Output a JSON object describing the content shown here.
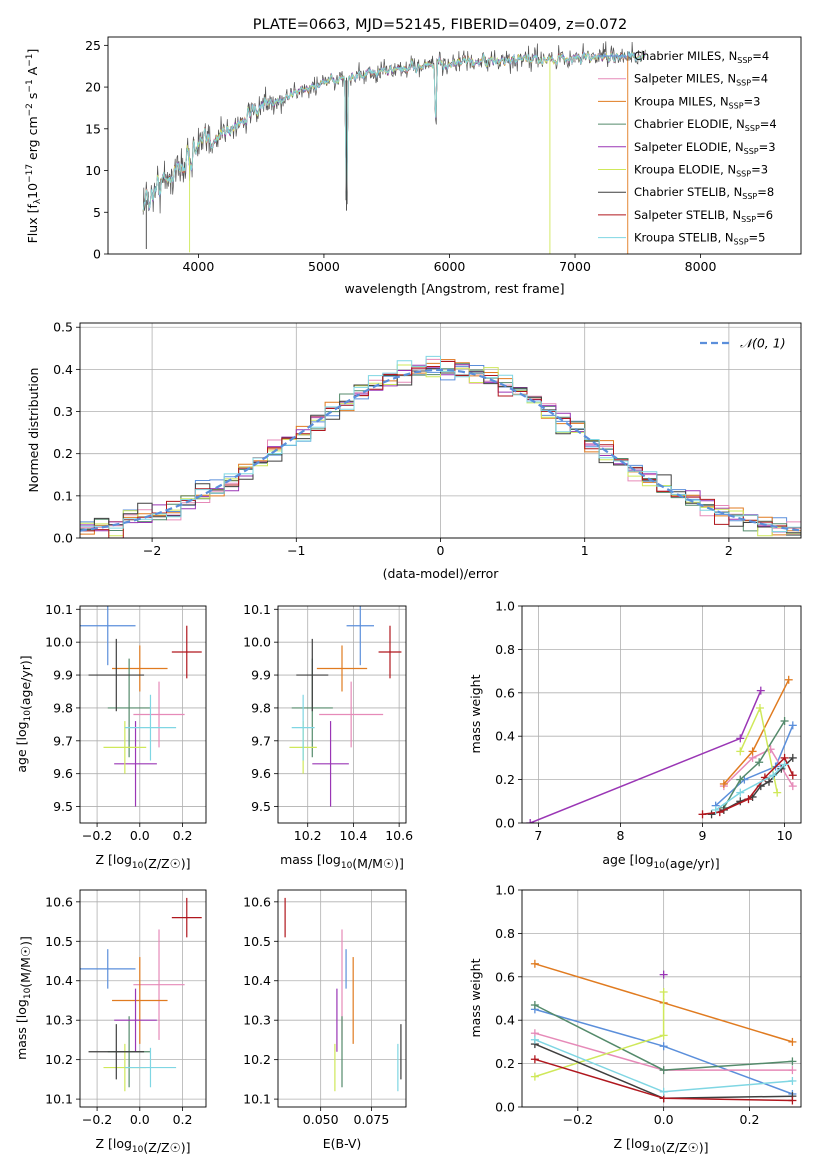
{
  "colors": {
    "Chabrier MILES": "#5b8fdb",
    "Salpeter MILES": "#e68ab8",
    "Kroupa MILES": "#e07b20",
    "Chabrier ELODIE": "#548a6b",
    "Salpeter ELODIE": "#9a36b5",
    "Kroupa ELODIE": "#cfe85a",
    "Chabrier STELIB": "#3f3f3f",
    "Salpeter STELIB": "#b0171e",
    "Kroupa STELIB": "#7fd6e3"
  },
  "chart_data": [
    {
      "id": "spectrum",
      "type": "line",
      "title": "PLATE=0663, MJD=52145, FIBERID=0409, z=0.072",
      "xlabel": "wavelength [Angstrom, rest frame]",
      "ylabel": "Flux [f_λ10^-17 erg cm^-2 s^-1 A^-1]",
      "xlim": [
        3280,
        8800
      ],
      "ylim": [
        0,
        26
      ],
      "xticks": [
        4000,
        5000,
        6000,
        7000,
        8000
      ],
      "yticks": [
        0,
        5,
        10,
        15,
        20,
        25
      ],
      "grid": false,
      "legend_position": "top-right",
      "continuum": {
        "x": [
          3560,
          3700,
          3900,
          4000,
          4100,
          4300,
          4500,
          4800,
          5000,
          5200,
          5500,
          5800,
          6000,
          6200,
          6500,
          6800,
          7000,
          7200,
          7500
        ],
        "y": [
          6,
          8.5,
          11,
          13,
          13.5,
          15.5,
          17.5,
          19.5,
          20.5,
          21.2,
          22,
          22.5,
          22.8,
          23,
          23.2,
          23.4,
          23.5,
          23.6,
          23.7
        ]
      },
      "dips": [
        {
          "x": 5180,
          "y": 5.2
        },
        {
          "x": 5890,
          "y": 15.5
        },
        {
          "x": 6800,
          "y": 0.2
        },
        {
          "x": 7420,
          "y": 0.2
        },
        {
          "x": 3930,
          "y": 0.4
        }
      ],
      "series": [
        {
          "name": "Chabrier MILES",
          "label": "Chabrier MILES, N",
          "sub": "SSP",
          "n": "=4"
        },
        {
          "name": "Salpeter MILES",
          "label": "Salpeter MILES, N",
          "sub": "SSP",
          "n": "=4"
        },
        {
          "name": "Kroupa MILES",
          "label": "Kroupa MILES, N",
          "sub": "SSP",
          "n": "=3"
        },
        {
          "name": "Chabrier ELODIE",
          "label": "Chabrier ELODIE, N",
          "sub": "SSP",
          "n": "=4"
        },
        {
          "name": "Salpeter ELODIE",
          "label": "Salpeter ELODIE, N",
          "sub": "SSP",
          "n": "=3"
        },
        {
          "name": "Kroupa ELODIE",
          "label": "Kroupa ELODIE, N",
          "sub": "SSP",
          "n": "=3"
        },
        {
          "name": "Chabrier STELIB",
          "label": "Chabrier STELIB, N",
          "sub": "SSP",
          "n": "=8"
        },
        {
          "name": "Salpeter STELIB",
          "label": "Salpeter STELIB, N",
          "sub": "SSP",
          "n": "=6"
        },
        {
          "name": "Kroupa STELIB",
          "label": "Kroupa STELIB, N",
          "sub": "SSP",
          "n": "=5"
        }
      ]
    },
    {
      "id": "residuals",
      "type": "line",
      "xlabel": "(data-model)/error",
      "ylabel": "Normed distribution",
      "xlim": [
        -2.5,
        2.5
      ],
      "ylim": [
        0,
        0.51
      ],
      "xticks": [
        -2,
        -1,
        0,
        1,
        2
      ],
      "yticks": [
        0.0,
        0.1,
        0.2,
        0.3,
        0.4,
        0.5
      ],
      "grid": true,
      "legend_position": "top-right",
      "bin_width": 0.1,
      "gaussian_label": "𝒩(0, 1)",
      "gaussian_color": "#5b8fdb"
    },
    {
      "id": "age-vs-Z",
      "type": "scatter",
      "xlabel": "Z [log10(Z/Z☉)]",
      "ylabel": "age [log10(age/yr)]",
      "xlim": [
        -0.28,
        0.31
      ],
      "ylim": [
        9.45,
        10.11
      ],
      "xticks": [
        -0.2,
        0.0,
        0.2
      ],
      "yticks": [
        9.5,
        9.6,
        9.7,
        9.8,
        9.9,
        10.0,
        10.1
      ],
      "grid": true,
      "points": [
        {
          "series": "Chabrier MILES",
          "x": -0.15,
          "y": 10.05,
          "xerr": 0.13,
          "yerr": 0.12
        },
        {
          "series": "Salpeter MILES",
          "x": 0.09,
          "y": 9.78,
          "xerr": 0.12,
          "yerr": 0.1
        },
        {
          "series": "Kroupa MILES",
          "x": 0.0,
          "y": 9.92,
          "xerr": 0.13,
          "yerr": 0.07
        },
        {
          "series": "Chabrier ELODIE",
          "x": -0.05,
          "y": 9.8,
          "xerr": 0.1,
          "yerr": 0.15
        },
        {
          "series": "Salpeter ELODIE",
          "x": -0.02,
          "y": 9.63,
          "xerr": 0.1,
          "yerr": 0.13
        },
        {
          "series": "Kroupa ELODIE",
          "x": -0.07,
          "y": 9.68,
          "xerr": 0.1,
          "yerr": 0.08
        },
        {
          "series": "Chabrier STELIB",
          "x": -0.11,
          "y": 9.9,
          "xerr": 0.13,
          "yerr": 0.11
        },
        {
          "series": "Salpeter STELIB",
          "x": 0.22,
          "y": 9.97,
          "xerr": 0.07,
          "yerr": 0.08
        },
        {
          "series": "Kroupa STELIB",
          "x": 0.05,
          "y": 9.74,
          "xerr": 0.12,
          "yerr": 0.1
        }
      ]
    },
    {
      "id": "age-vs-mass",
      "type": "scatter",
      "xlabel": "mass [log10(M/M☉)]",
      "ylabel": "",
      "xlim": [
        10.07,
        10.63
      ],
      "ylim": [
        9.45,
        10.11
      ],
      "xticks": [
        10.2,
        10.4,
        10.6
      ],
      "yticks": [
        9.5,
        9.6,
        9.7,
        9.8,
        9.9,
        10.0,
        10.1
      ],
      "grid": true,
      "points": [
        {
          "series": "Chabrier MILES",
          "x": 10.43,
          "y": 10.05,
          "xerr": 0.06,
          "yerr": 0.12
        },
        {
          "series": "Salpeter MILES",
          "x": 10.39,
          "y": 9.78,
          "xerr": 0.14,
          "yerr": 0.1
        },
        {
          "series": "Kroupa MILES",
          "x": 10.35,
          "y": 9.92,
          "xerr": 0.11,
          "yerr": 0.07
        },
        {
          "series": "Chabrier ELODIE",
          "x": 10.22,
          "y": 9.8,
          "xerr": 0.09,
          "yerr": 0.15
        },
        {
          "series": "Salpeter ELODIE",
          "x": 10.3,
          "y": 9.63,
          "xerr": 0.08,
          "yerr": 0.13
        },
        {
          "series": "Kroupa ELODIE",
          "x": 10.18,
          "y": 9.68,
          "xerr": 0.06,
          "yerr": 0.08
        },
        {
          "series": "Chabrier STELIB",
          "x": 10.22,
          "y": 9.9,
          "xerr": 0.07,
          "yerr": 0.11
        },
        {
          "series": "Salpeter STELIB",
          "x": 10.56,
          "y": 9.97,
          "xerr": 0.05,
          "yerr": 0.08
        },
        {
          "series": "Kroupa STELIB",
          "x": 10.18,
          "y": 9.74,
          "xerr": 0.05,
          "yerr": 0.1
        }
      ]
    },
    {
      "id": "weight-vs-age",
      "type": "line",
      "xlabel": "age [log10(age/yr)]",
      "ylabel": "mass weight",
      "xlim": [
        6.8,
        10.2
      ],
      "ylim": [
        0.0,
        1.0
      ],
      "xticks": [
        7,
        8,
        9,
        10
      ],
      "yticks": [
        0.0,
        0.2,
        0.4,
        0.6,
        0.8,
        1.0
      ],
      "grid": true,
      "series": [
        {
          "name": "Chabrier MILES",
          "x": [
            9.16,
            9.51,
            9.89,
            10.1
          ],
          "y": [
            0.08,
            0.2,
            0.26,
            0.45
          ]
        },
        {
          "name": "Salpeter MILES",
          "x": [
            9.26,
            9.61,
            9.83,
            10.1
          ],
          "y": [
            0.17,
            0.3,
            0.34,
            0.17
          ]
        },
        {
          "name": "Kroupa MILES",
          "x": [
            9.26,
            9.61,
            10.05
          ],
          "y": [
            0.18,
            0.33,
            0.66
          ]
        },
        {
          "name": "Chabrier ELODIE",
          "x": [
            9.26,
            9.46,
            9.69,
            10.0
          ],
          "y": [
            0.07,
            0.2,
            0.28,
            0.47
          ]
        },
        {
          "name": "Salpeter ELODIE",
          "x": [
            6.9,
            9.46,
            9.71
          ],
          "y": [
            0.0,
            0.39,
            0.61
          ]
        },
        {
          "name": "Kroupa ELODIE",
          "x": [
            9.46,
            9.7,
            9.91
          ],
          "y": [
            0.33,
            0.53,
            0.14
          ]
        },
        {
          "name": "Chabrier STELIB",
          "x": [
            9.11,
            9.26,
            9.46,
            9.61,
            9.71,
            9.81,
            9.96,
            10.1
          ],
          "y": [
            0.04,
            0.06,
            0.1,
            0.12,
            0.17,
            0.19,
            0.25,
            0.3
          ]
        },
        {
          "name": "Salpeter STELIB",
          "x": [
            9.0,
            9.21,
            9.56,
            9.76,
            10.0,
            10.1
          ],
          "y": [
            0.04,
            0.05,
            0.11,
            0.21,
            0.3,
            0.22
          ]
        },
        {
          "name": "Kroupa STELIB",
          "x": [
            9.16,
            9.46,
            9.86,
            10.0
          ],
          "y": [
            0.06,
            0.14,
            0.22,
            0.27
          ]
        }
      ]
    },
    {
      "id": "mass-vs-Z",
      "type": "scatter",
      "xlabel": "Z [log10(Z/Z☉)]",
      "ylabel": "mass [log10(M/M☉)]",
      "xlim": [
        -0.28,
        0.31
      ],
      "ylim": [
        10.08,
        10.63
      ],
      "xticks": [
        -0.2,
        0.0,
        0.2
      ],
      "yticks": [
        10.1,
        10.2,
        10.3,
        10.4,
        10.5,
        10.6
      ],
      "grid": true,
      "points": [
        {
          "series": "Chabrier MILES",
          "x": -0.15,
          "y": 10.43,
          "xerr": 0.13,
          "yerr": 0.05
        },
        {
          "series": "Salpeter MILES",
          "x": 0.09,
          "y": 10.39,
          "xerr": 0.12,
          "yerr": 0.14
        },
        {
          "series": "Kroupa MILES",
          "x": 0.0,
          "y": 10.35,
          "xerr": 0.13,
          "yerr": 0.11
        },
        {
          "series": "Chabrier ELODIE",
          "x": -0.05,
          "y": 10.22,
          "xerr": 0.1,
          "yerr": 0.09
        },
        {
          "series": "Salpeter ELODIE",
          "x": -0.02,
          "y": 10.3,
          "xerr": 0.1,
          "yerr": 0.08
        },
        {
          "series": "Kroupa ELODIE",
          "x": -0.07,
          "y": 10.18,
          "xerr": 0.1,
          "yerr": 0.06
        },
        {
          "series": "Chabrier STELIB",
          "x": -0.11,
          "y": 10.22,
          "xerr": 0.13,
          "yerr": 0.07
        },
        {
          "series": "Salpeter STELIB",
          "x": 0.22,
          "y": 10.56,
          "xerr": 0.07,
          "yerr": 0.05
        },
        {
          "series": "Kroupa STELIB",
          "x": 0.05,
          "y": 10.18,
          "xerr": 0.12,
          "yerr": 0.05
        }
      ]
    },
    {
      "id": "mass-vs-EBV",
      "type": "scatter",
      "xlabel": "E(B-V)",
      "ylabel": "",
      "xlim": [
        0.029,
        0.092
      ],
      "ylim": [
        10.08,
        10.63
      ],
      "xticks": [
        0.05,
        0.075
      ],
      "xtick_labels": [
        "0.050",
        "0.075"
      ],
      "yticks": [
        10.1,
        10.2,
        10.3,
        10.4,
        10.5,
        10.6
      ],
      "grid": true,
      "points": [
        {
          "series": "Chabrier MILES",
          "x": 0.0625,
          "y": 10.43,
          "yerr": 0.05
        },
        {
          "series": "Salpeter MILES",
          "x": 0.0605,
          "y": 10.39,
          "yerr": 0.14
        },
        {
          "series": "Kroupa MILES",
          "x": 0.066,
          "y": 10.35,
          "yerr": 0.11
        },
        {
          "series": "Chabrier ELODIE",
          "x": 0.0605,
          "y": 10.22,
          "yerr": 0.09
        },
        {
          "series": "Salpeter ELODIE",
          "x": 0.058,
          "y": 10.3,
          "yerr": 0.08
        },
        {
          "series": "Kroupa ELODIE",
          "x": 0.057,
          "y": 10.18,
          "yerr": 0.06
        },
        {
          "series": "Chabrier STELIB",
          "x": 0.0895,
          "y": 10.22,
          "yerr": 0.07
        },
        {
          "series": "Salpeter STELIB",
          "x": 0.0325,
          "y": 10.56,
          "yerr": 0.05
        },
        {
          "series": "Kroupa STELIB",
          "x": 0.088,
          "y": 10.18,
          "yerr": 0.06
        }
      ]
    },
    {
      "id": "weight-vs-Z",
      "type": "line",
      "xlabel": "Z [log10(Z/Z☉)]",
      "ylabel": "mass weight",
      "xlim": [
        -0.33,
        0.32
      ],
      "ylim": [
        0.0,
        1.0
      ],
      "xticks": [
        -0.2,
        0.0,
        0.2
      ],
      "yticks": [
        0.0,
        0.2,
        0.4,
        0.6,
        0.8,
        1.0
      ],
      "grid": true,
      "series": [
        {
          "name": "Chabrier MILES",
          "x": [
            -0.3,
            0.0,
            0.3
          ],
          "y": [
            0.45,
            0.28,
            0.06
          ]
        },
        {
          "name": "Salpeter MILES",
          "x": [
            -0.3,
            0.0,
            0.3
          ],
          "y": [
            0.34,
            0.17,
            0.17
          ]
        },
        {
          "name": "Kroupa MILES",
          "x": [
            -0.3,
            0.0,
            0.3
          ],
          "y": [
            0.66,
            0.48,
            0.3
          ]
        },
        {
          "name": "Chabrier ELODIE",
          "x": [
            -0.3,
            0.0,
            0.3
          ],
          "y": [
            0.47,
            0.17,
            0.21
          ]
        },
        {
          "name": "Salpeter ELODIE",
          "x": [
            0.0
          ],
          "y": [
            0.61
          ]
        },
        {
          "name": "Kroupa ELODIE",
          "x": [
            -0.3,
            0.0,
            0.0
          ],
          "y": [
            0.14,
            0.33,
            0.53
          ]
        },
        {
          "name": "Chabrier STELIB",
          "x": [
            -0.3,
            0.0,
            0.3
          ],
          "y": [
            0.29,
            0.04,
            0.05
          ]
        },
        {
          "name": "Salpeter STELIB",
          "x": [
            -0.3,
            0.0,
            0.3
          ],
          "y": [
            0.22,
            0.04,
            0.03
          ]
        },
        {
          "name": "Kroupa STELIB",
          "x": [
            -0.3,
            0.0,
            0.3
          ],
          "y": [
            0.31,
            0.07,
            0.12
          ]
        }
      ]
    }
  ]
}
